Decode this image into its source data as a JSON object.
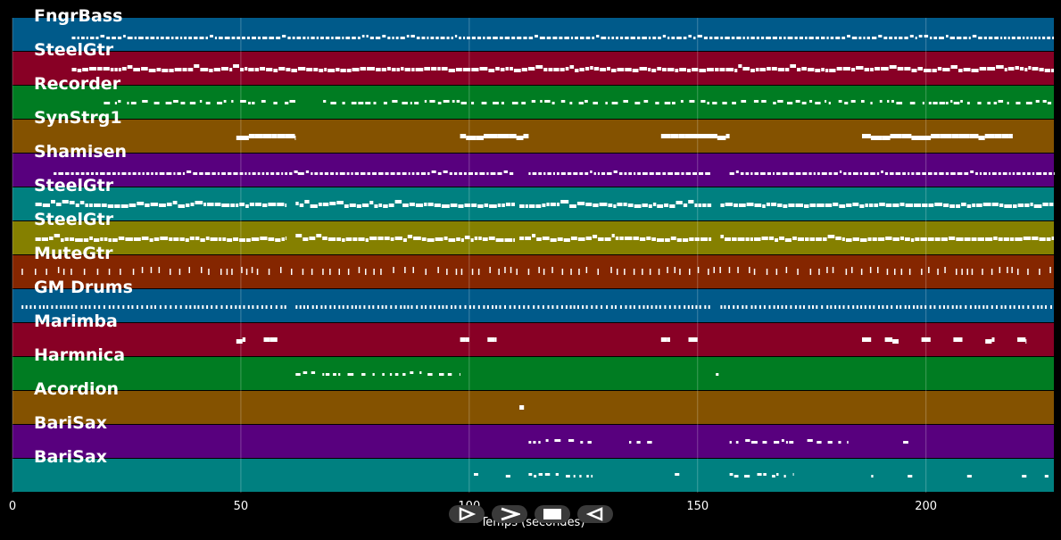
{
  "chart_data": {
    "type": "piano-roll",
    "xlabel": "Temps (secondes)",
    "xlim": [
      0,
      228
    ],
    "xticks": [
      0,
      50,
      100,
      150,
      200
    ],
    "tracks": [
      {
        "name": "FngrBass",
        "color": "#005a8a",
        "style": "dense",
        "segments": [
          [
            13,
            228
          ]
        ]
      },
      {
        "name": "SteelGtr",
        "color": "#880025",
        "style": "thick",
        "segments": [
          [
            13,
            228
          ]
        ]
      },
      {
        "name": "Recorder",
        "color": "#007c22",
        "style": "sparse",
        "segments": [
          [
            20,
            62
          ],
          [
            68,
            228
          ]
        ]
      },
      {
        "name": "SynStrg1",
        "color": "#845200",
        "style": "block",
        "segments": [
          [
            49,
            62
          ],
          [
            98,
            113
          ],
          [
            142,
            157
          ],
          [
            186,
            219
          ]
        ]
      },
      {
        "name": "Shamisen",
        "color": "#58007e",
        "style": "dense",
        "segments": [
          [
            9,
            63
          ],
          [
            62,
            110
          ],
          [
            113,
            153
          ],
          [
            157,
            228
          ]
        ]
      },
      {
        "name": "SteelGtr",
        "color": "#008080",
        "style": "thick",
        "segments": [
          [
            5,
            60
          ],
          [
            62,
            110
          ],
          [
            111,
            153
          ],
          [
            155,
            228
          ]
        ]
      },
      {
        "name": "SteelGtr",
        "color": "#858000",
        "style": "thick",
        "segments": [
          [
            5,
            60
          ],
          [
            62,
            110
          ],
          [
            111,
            153
          ],
          [
            155,
            228
          ]
        ]
      },
      {
        "name": "MuteGtr",
        "color": "#852600",
        "style": "ticks",
        "segments": [
          [
            2,
            228
          ]
        ]
      },
      {
        "name": "GM Drums",
        "color": "#005a8a",
        "style": "dots",
        "segments": [
          [
            2,
            60
          ],
          [
            62,
            153
          ],
          [
            155,
            228
          ]
        ]
      },
      {
        "name": "Marimba",
        "color": "#880025",
        "style": "block",
        "segments": [
          [
            49,
            51
          ],
          [
            55,
            58
          ],
          [
            98,
            100
          ],
          [
            104,
            106
          ],
          [
            142,
            144
          ],
          [
            148,
            150
          ],
          [
            186,
            188
          ],
          [
            191,
            194
          ],
          [
            199,
            201
          ],
          [
            206,
            208
          ],
          [
            213,
            215
          ],
          [
            220,
            222
          ]
        ]
      },
      {
        "name": "Harmnica",
        "color": "#007c22",
        "style": "sparse",
        "segments": [
          [
            62,
            98
          ],
          [
            154,
            155
          ]
        ]
      },
      {
        "name": "Acordion",
        "color": "#845200",
        "style": "block",
        "segments": [
          [
            111,
            112
          ]
        ]
      },
      {
        "name": "BariSax",
        "color": "#58007e",
        "style": "sparse",
        "segments": [
          [
            113,
            127
          ],
          [
            135,
            140
          ],
          [
            157,
            171
          ],
          [
            174,
            183
          ],
          [
            195,
            197
          ]
        ]
      },
      {
        "name": "BariSax",
        "color": "#008080",
        "style": "sparse",
        "segments": [
          [
            101,
            102
          ],
          [
            108,
            109
          ],
          [
            113,
            127
          ],
          [
            145,
            146
          ],
          [
            157,
            171
          ],
          [
            188,
            189
          ],
          [
            196,
            197
          ],
          [
            209,
            210
          ],
          [
            221,
            222
          ],
          [
            226,
            227
          ]
        ]
      }
    ]
  },
  "controls": {
    "play_label": "play",
    "forward_label": "forward",
    "stop_label": "stop",
    "rewind_label": "rewind"
  }
}
